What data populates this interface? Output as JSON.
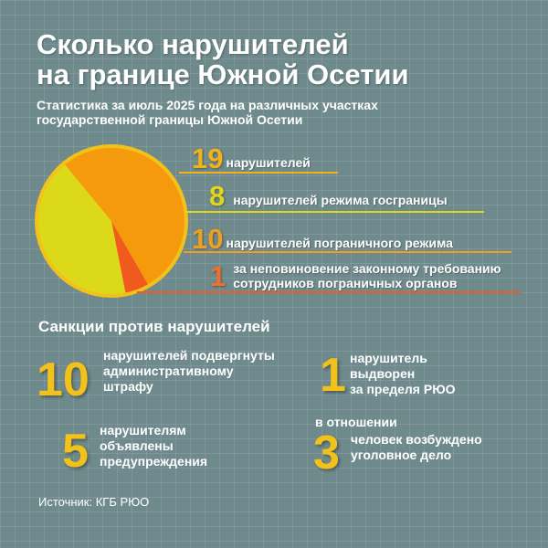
{
  "title": {
    "line1": "Сколько нарушителей",
    "line2": "на границе Южной Осетии"
  },
  "subtitle": {
    "line1": "Статистика за июль 2025 года на различных участках",
    "line2": "государственной границы Южной Осетии"
  },
  "colors": {
    "background": "#6f8a8c",
    "pie_border": "#f2c21a",
    "orange": "#f59a0c",
    "yellow": "#dcd81a",
    "red_orange": "#f05a1e"
  },
  "chart_data": {
    "type": "pie",
    "slices": [
      {
        "label": "нарушителей режима госграницы",
        "value": 8,
        "color": "#dcd81a"
      },
      {
        "label": "нарушителей пограничного режима",
        "value": 10,
        "color": "#f59a0c"
      },
      {
        "label": "за неповиновение законному требованию сотрудников пограничных органов",
        "value": 1,
        "color": "#f05a1e"
      }
    ],
    "total": 19
  },
  "stats": {
    "total_num": "19",
    "total_text": "нарушителей",
    "regime_num": "8",
    "regime_text": "нарушителей режима госграницы",
    "border_num": "10",
    "border_text": "нарушителей пограничного режима",
    "disobey_num": "1",
    "disobey_line1": "за неповиновение законному требованию",
    "disobey_line2": "сотрудников пограничных органов"
  },
  "sanctions": {
    "heading": "Санкции против нарушителей",
    "items": [
      {
        "num": "10",
        "line1": "нарушителей подвергнуты",
        "line2": "административному",
        "line3": "штрафу"
      },
      {
        "num": "1",
        "line1": "нарушитель",
        "line2": "выдворен",
        "line3": "за пределя РЮО"
      },
      {
        "num": "5",
        "line1": "нарушителям",
        "line2": "объявлены",
        "line3": "предупреждения"
      },
      {
        "num": "3",
        "prefix": "в отношении",
        "line1": "человек возбуждено",
        "line2": "уголовное дело"
      }
    ]
  },
  "source": "Источник: КГБ РЮО"
}
